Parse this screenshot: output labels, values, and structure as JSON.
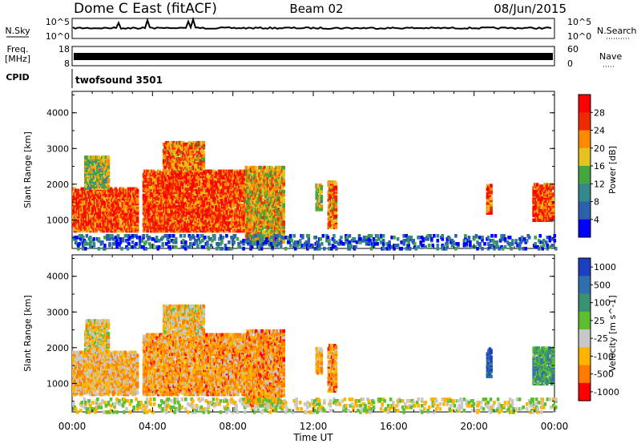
{
  "header": {
    "station": "Dome C East (fitACF)",
    "beam": "Beam 02",
    "date": "08/Jun/2015"
  },
  "strips": {
    "nsky_label": "N.Sky",
    "nsky_ticks": [
      "10^5",
      "10^0"
    ],
    "nsearch_label": "N.Search",
    "nsearch_ticks": [
      "10^5",
      "10^0"
    ],
    "freq_label": "Freq.",
    "freq_unit": "[MHz]",
    "freq_ticks": [
      "18",
      "8"
    ],
    "nave_label": "Nave",
    "nave_ticks": [
      "60",
      "0"
    ],
    "cpid_label": "CPID",
    "cpid_value": "twofsound 3501"
  },
  "chart_data": [
    {
      "type": "heatmap",
      "name": "power",
      "ylabel": "Slant Range [km]",
      "ylim": [
        200,
        4600
      ],
      "yticks": [
        "1000",
        "2000",
        "3000",
        "4000"
      ],
      "colorbar_label": "Power [dB]",
      "colorbar_ticks": [
        "4",
        "8",
        "12",
        "16",
        "20",
        "24",
        "28"
      ],
      "colorbar_range": [
        0,
        32
      ],
      "colors": [
        "#0000ff",
        "#2c60ae",
        "#33888d",
        "#43a640",
        "#e6c220",
        "#ff8a00",
        "#f02a00",
        "#ff0000"
      ],
      "echo_regions": [
        {
          "t0": 0.0,
          "t1": 3.2,
          "r0": 700,
          "r1": 1900,
          "level": 0.78
        },
        {
          "t0": 0.6,
          "t1": 1.8,
          "r0": 1900,
          "r1": 2800,
          "level": 0.5
        },
        {
          "t0": 3.5,
          "t1": 8.6,
          "r0": 700,
          "r1": 2400,
          "level": 0.8
        },
        {
          "t0": 4.5,
          "t1": 6.5,
          "r0": 2400,
          "r1": 3200,
          "level": 0.7
        },
        {
          "t0": 8.6,
          "t1": 10.5,
          "r0": 400,
          "r1": 2500,
          "level": 0.6
        },
        {
          "t0": 12.1,
          "t1": 12.4,
          "r0": 1300,
          "r1": 2000,
          "level": 0.55
        },
        {
          "t0": 12.7,
          "t1": 13.1,
          "r0": 800,
          "r1": 2100,
          "level": 0.7
        },
        {
          "t0": 20.6,
          "t1": 20.8,
          "r0": 1200,
          "r1": 2000,
          "level": 0.75
        },
        {
          "t0": 22.9,
          "t1": 23.9,
          "r0": 1000,
          "r1": 2000,
          "level": 0.8
        },
        {
          "t0": 0.0,
          "t1": 24.0,
          "r0": 200,
          "r1": 600,
          "level": 0.2
        }
      ]
    },
    {
      "type": "heatmap",
      "name": "velocity",
      "ylabel": "Slant Range [km]",
      "ylim": [
        200,
        4600
      ],
      "yticks": [
        "1000",
        "2000",
        "3000",
        "4000"
      ],
      "colorbar_label": "Velocity [m s^-1]",
      "colorbar_ticks": [
        "1000",
        "500",
        "100",
        "25",
        "-25",
        "-100",
        "-500",
        "-1000"
      ],
      "colors": [
        "#1c3fbf",
        "#2f6fb0",
        "#3a9070",
        "#5bbf30",
        "#c8c8c8",
        "#ffb400",
        "#ff7a00",
        "#ff0000"
      ],
      "echo_regions": [
        {
          "t0": 0.0,
          "t1": 3.2,
          "r0": 700,
          "r1": 1900,
          "level": -0.35
        },
        {
          "t0": 0.6,
          "t1": 1.8,
          "r0": 1900,
          "r1": 2800,
          "level": -0.2
        },
        {
          "t0": 3.5,
          "t1": 8.6,
          "r0": 700,
          "r1": 2400,
          "level": -0.45
        },
        {
          "t0": 4.5,
          "t1": 6.5,
          "r0": 2400,
          "r1": 3200,
          "level": -0.3
        },
        {
          "t0": 8.6,
          "t1": 10.5,
          "r0": 400,
          "r1": 2500,
          "level": -0.5
        },
        {
          "t0": 12.1,
          "t1": 12.4,
          "r0": 1300,
          "r1": 2000,
          "level": -0.4
        },
        {
          "t0": 12.7,
          "t1": 13.1,
          "r0": 800,
          "r1": 2100,
          "level": -0.5
        },
        {
          "t0": 20.6,
          "t1": 20.8,
          "r0": 1200,
          "r1": 2000,
          "level": 0.8
        },
        {
          "t0": 22.9,
          "t1": 23.9,
          "r0": 1000,
          "r1": 2000,
          "level": 0.3
        },
        {
          "t0": 0.0,
          "t1": 24.0,
          "r0": 200,
          "r1": 600,
          "level": -0.1
        }
      ]
    }
  ],
  "x_axis": {
    "xlabel": "Time UT",
    "xlim": [
      0,
      24
    ],
    "ticks": [
      "00:00",
      "04:00",
      "08:00",
      "12:00",
      "16:00",
      "20:00",
      "00:00"
    ]
  }
}
